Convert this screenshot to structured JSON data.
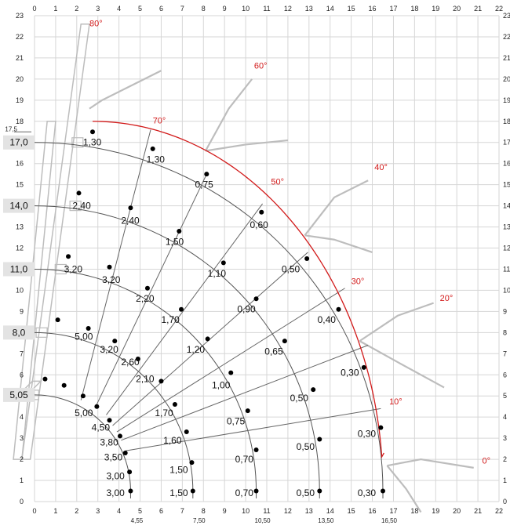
{
  "chart_data": {
    "type": "load-chart",
    "x_ticks": [
      "0",
      "1",
      "2",
      "3",
      "4",
      "5",
      "6",
      "7",
      "8",
      "9",
      "10",
      "11",
      "12",
      "13",
      "14",
      "15",
      "16",
      "17",
      "18",
      "19",
      "20",
      "21",
      "22"
    ],
    "y_ticks": [
      "0",
      "1",
      "2",
      "3",
      "4",
      "5",
      "6",
      "7",
      "8",
      "9",
      "10",
      "11",
      "12",
      "13",
      "14",
      "15",
      "16",
      "17",
      "18",
      "19",
      "20",
      "21",
      "22",
      "23"
    ],
    "xlim": [
      0,
      22
    ],
    "ylim": [
      0,
      23
    ],
    "grid": true,
    "height_marker": {
      "label": "17,5",
      "y": 17.5
    },
    "boom_heights": [
      {
        "label": "17,0",
        "y": 17.0
      },
      {
        "label": "14,0",
        "y": 14.0
      },
      {
        "label": "11,0",
        "y": 11.0
      },
      {
        "label": "8,0",
        "y": 8.0
      },
      {
        "label": "5,05",
        "y": 5.05
      }
    ],
    "reach_labels": [
      {
        "label": "4,55",
        "x": 4.55
      },
      {
        "label": "7,50",
        "x": 7.5
      },
      {
        "label": "10,50",
        "x": 10.5
      },
      {
        "label": "13,50",
        "x": 13.5
      },
      {
        "label": "16,50",
        "x": 16.5
      }
    ],
    "angle_labels": [
      {
        "label": "80°",
        "x": 2.6,
        "y": 22.5
      },
      {
        "label": "70°",
        "x": 5.6,
        "y": 17.9
      },
      {
        "label": "60°",
        "x": 10.4,
        "y": 20.5
      },
      {
        "label": "50°",
        "x": 11.2,
        "y": 15.0
      },
      {
        "label": "40°",
        "x": 16.1,
        "y": 15.7
      },
      {
        "label": "30°",
        "x": 15.0,
        "y": 10.3
      },
      {
        "label": "20°",
        "x": 19.2,
        "y": 9.5
      },
      {
        "label": "10°",
        "x": 16.8,
        "y": 4.6
      },
      {
        "label": "0°",
        "x": 21.2,
        "y": 1.8
      }
    ],
    "points": [
      {
        "x": 2.75,
        "y": 17.5,
        "label": "1,30",
        "lx": 2.3,
        "ly": 17.0
      },
      {
        "x": 5.6,
        "y": 16.7,
        "label": "1,30",
        "lx": 5.3,
        "ly": 16.2
      },
      {
        "x": 8.15,
        "y": 15.5,
        "label": "0,75",
        "lx": 7.6,
        "ly": 15.0
      },
      {
        "x": 2.1,
        "y": 14.6,
        "label": "2,40",
        "lx": 1.8,
        "ly": 14.0
      },
      {
        "x": 4.55,
        "y": 13.9,
        "label": "2,40",
        "lx": 4.1,
        "ly": 13.3
      },
      {
        "x": 6.85,
        "y": 12.8,
        "label": "1,50",
        "lx": 6.2,
        "ly": 12.3
      },
      {
        "x": 10.75,
        "y": 13.7,
        "label": "0,60",
        "lx": 10.2,
        "ly": 13.1
      },
      {
        "x": 1.6,
        "y": 11.6,
        "label": "3,20",
        "lx": 1.4,
        "ly": 11.0
      },
      {
        "x": 3.55,
        "y": 11.1,
        "label": "3,20",
        "lx": 3.2,
        "ly": 10.5
      },
      {
        "x": 5.35,
        "y": 10.1,
        "label": "2,20",
        "lx": 4.8,
        "ly": 9.6
      },
      {
        "x": 8.95,
        "y": 11.3,
        "label": "1,10",
        "lx": 8.2,
        "ly": 10.8
      },
      {
        "x": 12.9,
        "y": 11.5,
        "label": "0,50",
        "lx": 11.7,
        "ly": 11.0
      },
      {
        "x": 1.1,
        "y": 8.6,
        "label": "5,00",
        "lx": 1.9,
        "ly": 7.8
      },
      {
        "x": 2.55,
        "y": 8.2,
        "label": "3,20",
        "lx": 3.1,
        "ly": 7.2
      },
      {
        "x": 3.8,
        "y": 7.6,
        "label": "2,60",
        "lx": 4.1,
        "ly": 6.6
      },
      {
        "x": 6.95,
        "y": 9.1,
        "label": "1,70",
        "lx": 6.0,
        "ly": 8.6
      },
      {
        "x": 10.5,
        "y": 9.6,
        "label": "0,90",
        "lx": 9.6,
        "ly": 9.1
      },
      {
        "x": 14.4,
        "y": 9.1,
        "label": "0,40",
        "lx": 13.4,
        "ly": 8.6
      },
      {
        "x": 0.5,
        "y": 5.8,
        "label": "",
        "lx": 0,
        "ly": 0
      },
      {
        "x": 1.4,
        "y": 5.5,
        "label": "",
        "lx": 0,
        "ly": 0
      },
      {
        "x": 2.3,
        "y": 5.0,
        "label": "",
        "lx": 0,
        "ly": 0
      },
      {
        "x": 4.9,
        "y": 6.75,
        "label": "2,10",
        "lx": 4.8,
        "ly": 5.8
      },
      {
        "x": 8.2,
        "y": 7.7,
        "label": "1,20",
        "lx": 7.2,
        "ly": 7.2
      },
      {
        "x": 11.85,
        "y": 7.6,
        "label": "0,65",
        "lx": 10.9,
        "ly": 7.1
      },
      {
        "x": 15.6,
        "y": 6.35,
        "label": "0,30",
        "lx": 14.5,
        "ly": 6.1
      },
      {
        "x": 2.95,
        "y": 4.5,
        "label": "5,00",
        "lx": 1.9,
        "ly": 4.2
      },
      {
        "x": 3.55,
        "y": 3.85,
        "label": "4,50",
        "lx": 2.7,
        "ly": 3.5
      },
      {
        "x": 6.0,
        "y": 5.7,
        "label": "",
        "lx": 0,
        "ly": 0
      },
      {
        "x": 9.3,
        "y": 6.1,
        "label": "1,00",
        "lx": 8.4,
        "ly": 5.5
      },
      {
        "x": 13.2,
        "y": 5.3,
        "label": "0,50",
        "lx": 12.1,
        "ly": 4.9
      },
      {
        "x": 6.65,
        "y": 4.6,
        "label": "1,70",
        "lx": 5.7,
        "ly": 4.2
      },
      {
        "x": 10.1,
        "y": 4.3,
        "label": "0,75",
        "lx": 9.1,
        "ly": 3.8
      },
      {
        "x": 16.4,
        "y": 3.5,
        "label": "0,30",
        "lx": 15.3,
        "ly": 3.2
      },
      {
        "x": 4.05,
        "y": 3.1,
        "label": "3,80",
        "lx": 3.1,
        "ly": 2.8
      },
      {
        "x": 7.2,
        "y": 3.3,
        "label": "1,60",
        "lx": 6.1,
        "ly": 2.9
      },
      {
        "x": 13.5,
        "y": 2.95,
        "label": "0,50",
        "lx": 12.4,
        "ly": 2.6
      },
      {
        "x": 4.3,
        "y": 2.3,
        "label": "3,50",
        "lx": 3.3,
        "ly": 2.1
      },
      {
        "x": 10.5,
        "y": 2.45,
        "label": "0,70",
        "lx": 9.5,
        "ly": 2.0
      },
      {
        "x": 7.45,
        "y": 1.85,
        "label": "1,50",
        "lx": 6.4,
        "ly": 1.5
      },
      {
        "x": 4.5,
        "y": 1.4,
        "label": "3,00",
        "lx": 3.4,
        "ly": 1.2
      },
      {
        "x": 4.55,
        "y": 0.5,
        "label": "3,00",
        "lx": 3.4,
        "ly": 0.4
      },
      {
        "x": 7.5,
        "y": 0.5,
        "label": "1,50",
        "lx": 6.4,
        "ly": 0.4
      },
      {
        "x": 10.5,
        "y": 0.5,
        "label": "0,70",
        "lx": 9.5,
        "ly": 0.4
      },
      {
        "x": 13.5,
        "y": 0.5,
        "label": "0,50",
        "lx": 12.4,
        "ly": 0.4
      },
      {
        "x": 16.5,
        "y": 0.5,
        "label": "0,30",
        "lx": 15.3,
        "ly": 0.4
      }
    ],
    "colors": {
      "envelope": "#d21a1a",
      "arcs": "#555555",
      "grid": "#d6d6d6",
      "crane": "#bdbdbd"
    }
  }
}
